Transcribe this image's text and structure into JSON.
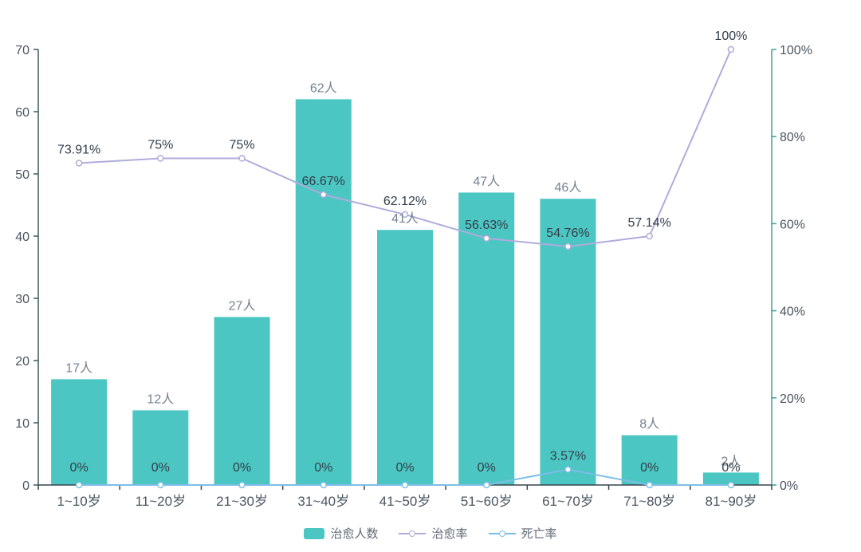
{
  "chart_data": {
    "type": "bar",
    "combo": "bar+line dual-axis",
    "title": "",
    "grid": false,
    "categories": [
      "1~10岁",
      "11~20岁",
      "21~30岁",
      "31~40岁",
      "41~50岁",
      "51~60岁",
      "61~70岁",
      "71~80岁",
      "81~90岁"
    ],
    "series": [
      {
        "id": "cured-count",
        "name": "治愈人数",
        "type": "bar",
        "axis": "left",
        "color": "#4CC6C2",
        "values": [
          17,
          12,
          27,
          62,
          41,
          47,
          46,
          8,
          2
        ],
        "labels": [
          "17人",
          "12人",
          "27人",
          "62人",
          "41人",
          "47人",
          "46人",
          "8人",
          "2人"
        ]
      },
      {
        "id": "cure-rate",
        "name": "治愈率",
        "type": "line",
        "axis": "right",
        "color": "#AFACDB",
        "values": [
          73.91,
          75,
          75,
          66.67,
          62.12,
          56.63,
          54.76,
          57.14,
          100
        ],
        "labels": [
          "73.91%",
          "75%",
          "75%",
          "66.67%",
          "62.12%",
          "56.63%",
          "54.76%",
          "57.14%",
          "100%"
        ]
      },
      {
        "id": "death-rate",
        "name": "死亡率",
        "type": "line",
        "axis": "right",
        "color": "#7CBEE8",
        "values": [
          0,
          0,
          0,
          0,
          0,
          0,
          3.57,
          0,
          0
        ],
        "labels": [
          "0%",
          "0%",
          "0%",
          "0%",
          "0%",
          "0%",
          "3.57%",
          "0%",
          "0%"
        ]
      }
    ],
    "left_axis": {
      "min": 0,
      "max": 70,
      "tick_labels": [
        "0",
        "10",
        "20",
        "30",
        "40",
        "50",
        "60",
        "70"
      ]
    },
    "right_axis": {
      "min": 0,
      "max": 100,
      "tick_labels": [
        "0%",
        "20%",
        "40%",
        "60%",
        "80%",
        "100%"
      ]
    },
    "legend": {
      "position": "bottom",
      "items": [
        "治愈人数",
        "治愈率",
        "死亡率"
      ]
    }
  },
  "colors": {
    "background": "#FFFFFF",
    "bar": "#4CC6C2",
    "cure_line": "#AFACDB",
    "death_line": "#7CBEE8",
    "left_axis_line": "#3E5A5E",
    "bottom_axis_line": "#36454F",
    "right_axis_line": "#3FA096",
    "tick_label": "#4A5560",
    "category_label": "#4A5560",
    "bar_value_label": "#75818F",
    "line_value_label": "#323E4A",
    "legend_text": "#616B76"
  }
}
